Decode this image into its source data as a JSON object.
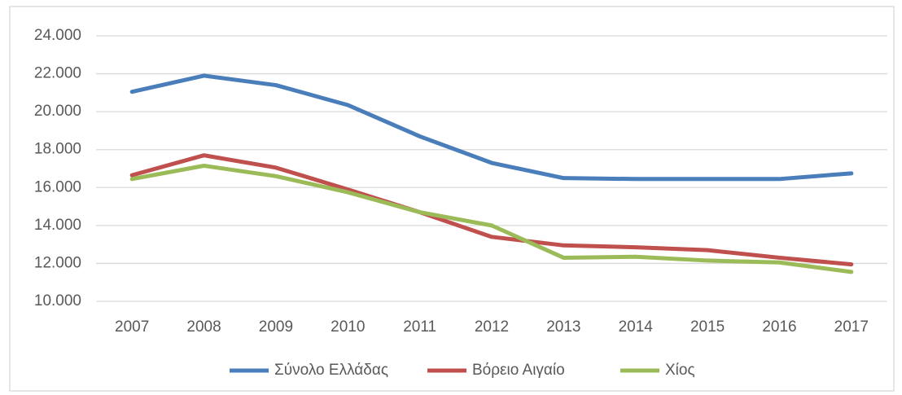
{
  "chart_data": {
    "type": "line",
    "categories": [
      "2007",
      "2008",
      "2009",
      "2010",
      "2011",
      "2012",
      "2013",
      "2014",
      "2015",
      "2016",
      "2017"
    ],
    "series": [
      {
        "name": "Σύνολο Ελλάδας",
        "color": "#4a7ebb",
        "values": [
          21050,
          21900,
          21400,
          20350,
          18700,
          17300,
          16500,
          16450,
          16450,
          16450,
          16750
        ]
      },
      {
        "name": "Βόρειο Αιγαίο",
        "color": "#c0504d",
        "values": [
          16650,
          17700,
          17050,
          15900,
          14700,
          13400,
          12950,
          12850,
          12700,
          12300,
          11950
        ]
      },
      {
        "name": "Χίος",
        "color": "#9bbb59",
        "values": [
          16450,
          17150,
          16600,
          15750,
          14700,
          14000,
          12300,
          12350,
          12150,
          12050,
          11550
        ]
      }
    ],
    "ylim": [
      10000,
      24000
    ],
    "yticks": [
      {
        "value": 10000,
        "label": "10.000"
      },
      {
        "value": 12000,
        "label": "12.000"
      },
      {
        "value": 14000,
        "label": "14.000"
      },
      {
        "value": 16000,
        "label": "16.000"
      },
      {
        "value": 18000,
        "label": "18.000"
      },
      {
        "value": 20000,
        "label": "20.000"
      },
      {
        "value": 22000,
        "label": "22.000"
      },
      {
        "value": 24000,
        "label": "24.000"
      }
    ],
    "grid": true,
    "legend": "bottom"
  }
}
